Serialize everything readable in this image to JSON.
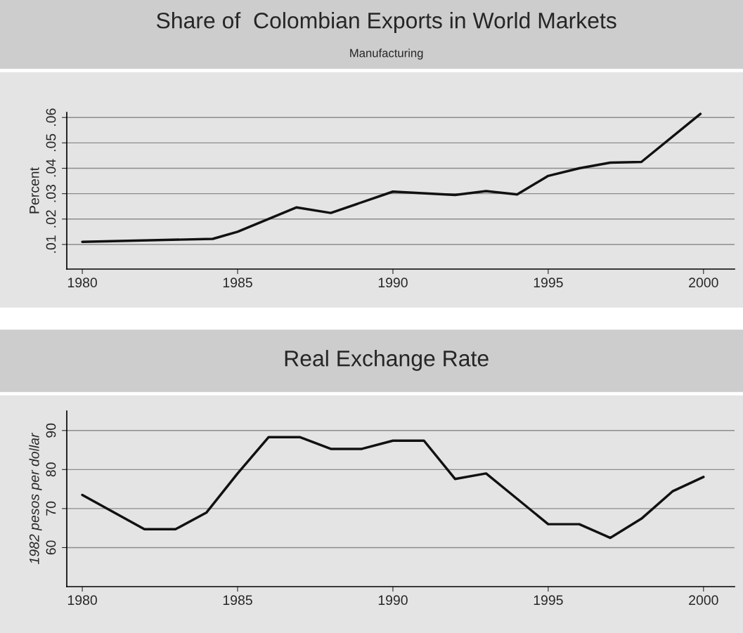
{
  "chart_data": [
    {
      "type": "line",
      "title": "Share of  Colombian Exports in World Markets",
      "subtitle": "Manufacturing",
      "ylabel": "Percent",
      "x": [
        1980,
        1984.2,
        1985,
        1986.9,
        1988,
        1990,
        1992,
        1993,
        1994,
        1995,
        1996,
        1997,
        1998,
        1999.9
      ],
      "series": [
        {
          "color": "#111111",
          "values": [
            0.011,
            0.0122,
            0.015,
            0.0246,
            0.0224,
            0.0308,
            0.0295,
            0.031,
            0.0297,
            0.037,
            0.04,
            0.0422,
            0.0425,
            0.0614
          ]
        }
      ],
      "xlim": [
        1979.5,
        2001
      ],
      "xticks": [
        1980,
        1985,
        1990,
        1995,
        2000
      ],
      "ylim": [
        0.0003,
        0.062
      ],
      "yticks": [
        {
          "value": 0.01,
          "label": ".01"
        },
        {
          "value": 0.02,
          "label": ".02"
        },
        {
          "value": 0.03,
          "label": ".03"
        },
        {
          "value": 0.04,
          "label": ".04"
        },
        {
          "value": 0.05,
          "label": ".05"
        },
        {
          "value": 0.06,
          "label": ".06"
        }
      ],
      "grid": "y"
    },
    {
      "type": "line",
      "title": "Real Exchange Rate",
      "ylabel": "1982 pesos per dollar",
      "x": [
        1980,
        1982,
        1983,
        1984,
        1985,
        1986,
        1987,
        1988,
        1989,
        1990,
        1991,
        1992,
        1993,
        1994,
        1995,
        1996,
        1997,
        1998,
        1999,
        2000
      ],
      "series": [
        {
          "color": "#111111",
          "values": [
            73.5,
            64.7,
            64.7,
            69,
            79,
            88.3,
            88.3,
            85.3,
            85.3,
            87.4,
            87.4,
            77.6,
            79,
            72.5,
            66,
            66,
            62.5,
            67.4,
            74.4,
            78.1
          ]
        }
      ],
      "xlim": [
        1979.5,
        2001
      ],
      "xticks": [
        1980,
        1985,
        1990,
        1995,
        2000
      ],
      "ylim": [
        50,
        95
      ],
      "yticks": [
        60,
        70,
        80,
        90
      ],
      "grid": "y"
    }
  ]
}
